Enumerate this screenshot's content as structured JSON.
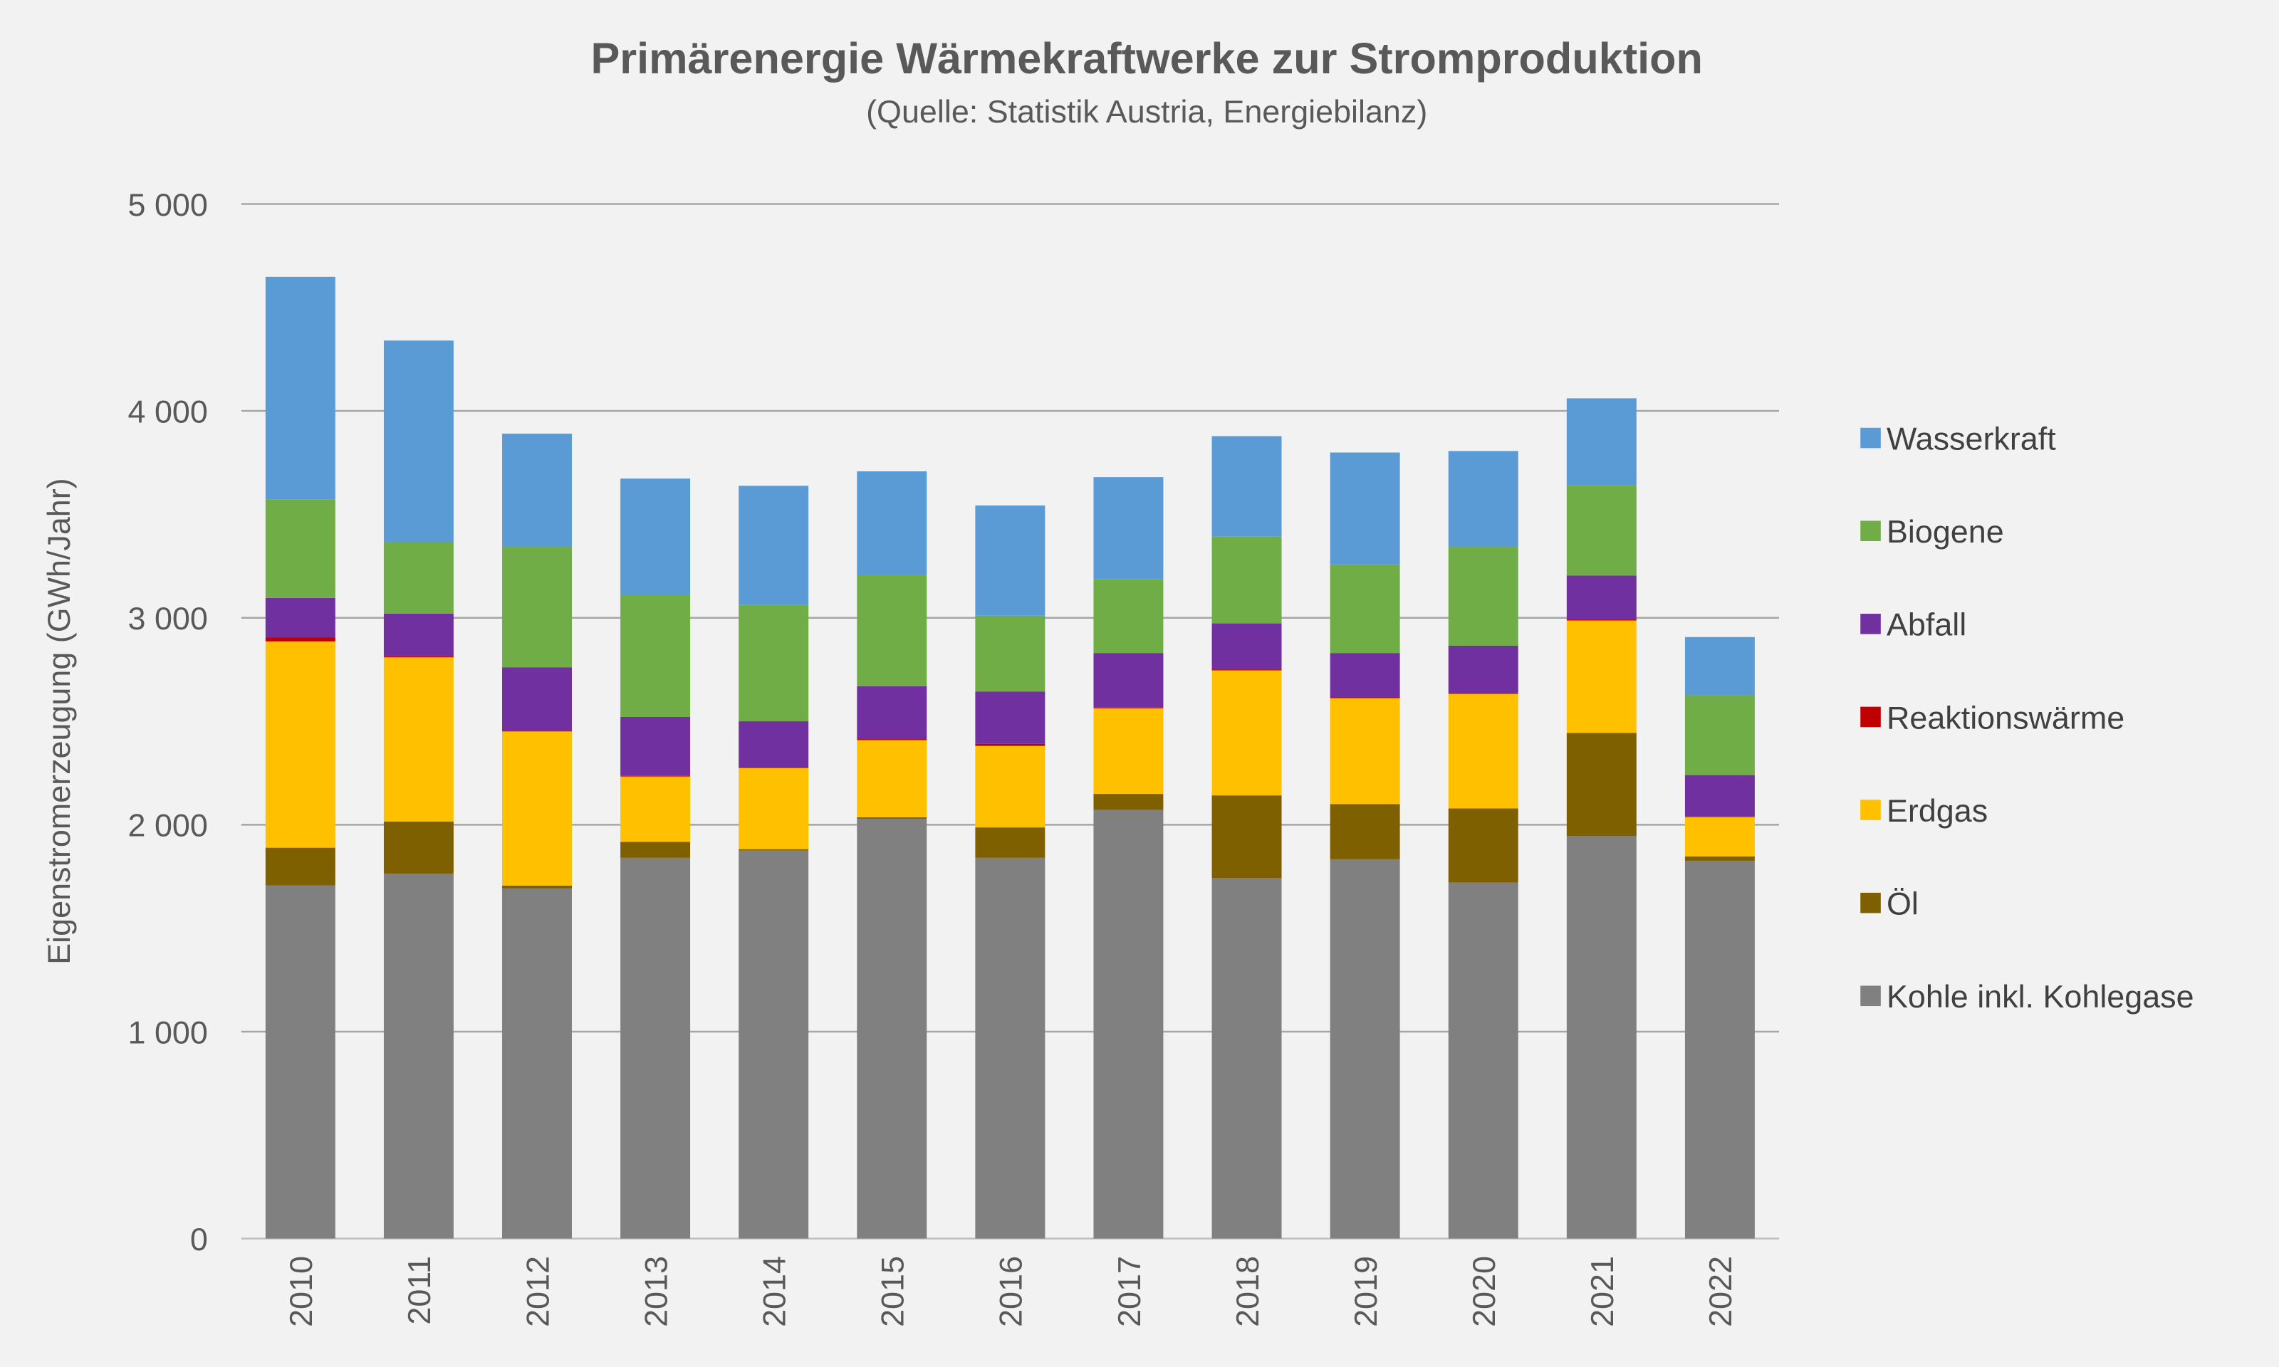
{
  "chart_data": {
    "type": "bar",
    "stacked": true,
    "title": "Primärenergie Wärmekraftwerke zur Stromproduktion",
    "subtitle": "(Quelle: Statistik Austria, Energiebilanz)",
    "xlabel": "",
    "ylabel": "Eigenstromerzeugung (GWh/Jahr)",
    "ylim": [
      0,
      5000
    ],
    "yticks": [
      0,
      1000,
      2000,
      3000,
      4000,
      5000
    ],
    "ytick_labels": [
      "0",
      "1 000",
      "2 000",
      "3 000",
      "4 000",
      "5 000"
    ],
    "grid": true,
    "legend_position": "right",
    "categories": [
      "2010",
      "2011",
      "2012",
      "2013",
      "2014",
      "2015",
      "2016",
      "2017",
      "2018",
      "2019",
      "2020",
      "2021",
      "2022"
    ],
    "series": [
      {
        "name": "Kohle inkl. Kohlegase",
        "color": "#808080",
        "values": [
          1706,
          1763,
          1692,
          1840,
          1875,
          2029,
          1840,
          2072,
          1742,
          1833,
          1721,
          1945,
          1826
        ]
      },
      {
        "name": "Öl",
        "color": "#7f6000",
        "values": [
          183,
          252,
          14,
          77,
          7,
          7,
          147,
          77,
          400,
          267,
          358,
          499,
          21
        ]
      },
      {
        "name": "Erdgas",
        "color": "#ffc000",
        "values": [
          997,
          794,
          745,
          316,
          393,
          373,
          394,
          414,
          604,
          512,
          554,
          543,
          190
        ]
      },
      {
        "name": "Reaktionswärme",
        "color": "#c00000",
        "values": [
          20,
          5,
          3,
          3,
          5,
          5,
          10,
          3,
          5,
          5,
          5,
          5,
          3
        ]
      },
      {
        "name": "Abfall",
        "color": "#7030a0",
        "values": [
          190,
          206,
          306,
          285,
          220,
          255,
          253,
          264,
          222,
          213,
          227,
          212,
          200
        ]
      },
      {
        "name": "Biogene",
        "color": "#70ad47",
        "values": [
          477,
          344,
          583,
          590,
          562,
          540,
          366,
          358,
          421,
          428,
          478,
          436,
          386
        ]
      },
      {
        "name": "Wasserkraft",
        "color": "#5b9bd5",
        "values": [
          1075,
          976,
          547,
          562,
          576,
          499,
          533,
          492,
          484,
          541,
          463,
          421,
          281
        ]
      }
    ]
  }
}
